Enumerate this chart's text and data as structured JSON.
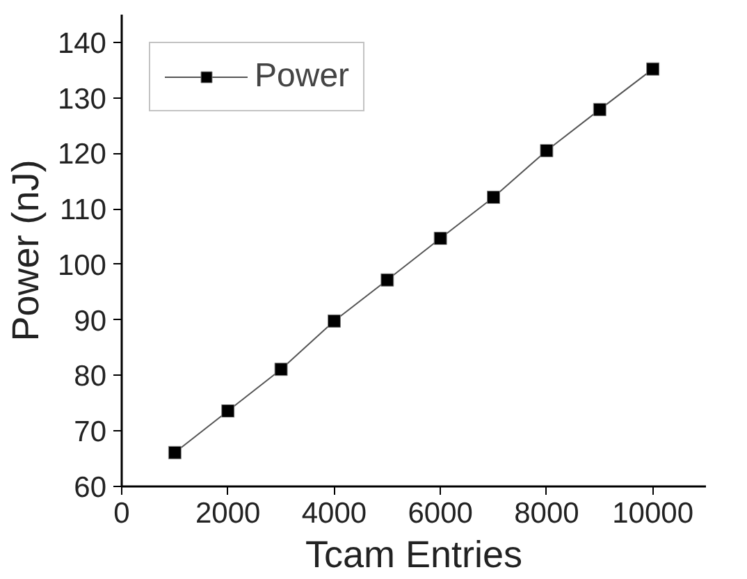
{
  "chart_data": {
    "type": "line",
    "xlabel": "Tcam Entries",
    "ylabel": "Power (nJ)",
    "x": [
      1000,
      2000,
      3000,
      4000,
      5000,
      6000,
      7000,
      8000,
      9000,
      10000
    ],
    "series": [
      {
        "name": "Power",
        "color": "#000000",
        "values": [
          66.1,
          73.6,
          81.1,
          89.8,
          97.2,
          104.7,
          112.1,
          120.5,
          127.9,
          135.2
        ]
      }
    ],
    "xlim": [
      0,
      11000
    ],
    "ylim": [
      60,
      145
    ],
    "xticks": [
      0,
      2000,
      4000,
      6000,
      8000,
      10000
    ],
    "yticks": [
      60,
      70,
      80,
      90,
      100,
      110,
      120,
      130,
      140
    ],
    "grid": false,
    "legend": "top left",
    "marker": "square",
    "line_style": "solid"
  }
}
